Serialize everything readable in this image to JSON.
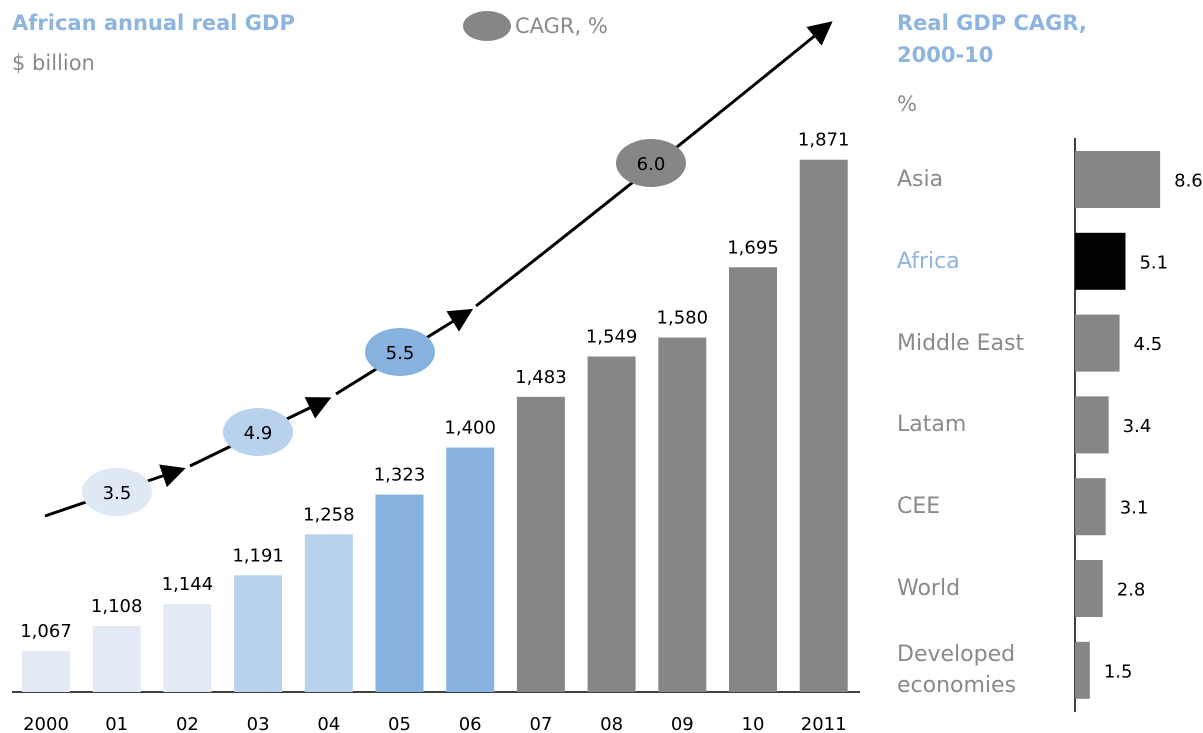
{
  "chart_data": [
    {
      "type": "bar",
      "title": "African annual real GDP",
      "subtitle": "$ billion",
      "categories": [
        "2000",
        "01",
        "02",
        "03",
        "04",
        "05",
        "06",
        "07",
        "08",
        "09",
        "10",
        "2011"
      ],
      "values": [
        1067,
        1108,
        1144,
        1191,
        1258,
        1323,
        1400,
        1483,
        1549,
        1580,
        1695,
        1871
      ],
      "value_labels": [
        "1,067",
        "1,108",
        "1,144",
        "1,191",
        "1,258",
        "1,323",
        "1,400",
        "1,483",
        "1,549",
        "1,580",
        "1,695",
        "1,871"
      ],
      "colors": [
        "#e3eaf6",
        "#e3eaf6",
        "#e3eaf6",
        "#b8d1ec",
        "#b8d1ec",
        "#87b2df",
        "#87b2df",
        "#868688",
        "#868688",
        "#868688",
        "#868688",
        "#868688"
      ],
      "ylim": [
        1000,
        1900
      ],
      "cagr": {
        "name": "CAGR, %",
        "color": "#868688",
        "values": [
          3.5,
          4.9,
          5.5,
          6.0
        ],
        "value_labels": [
          "3.5",
          "4.9",
          "5.5",
          "6.0"
        ],
        "colors": [
          "#dfe8f5",
          "#b8d1ec",
          "#87b2df",
          "#868688"
        ]
      }
    },
    {
      "type": "hbar",
      "title": "Real GDP CAGR, 2000-10",
      "subtitle": "%",
      "categories": [
        "Asia",
        "Africa",
        "Middle East",
        "Latam",
        "CEE",
        "World",
        "Developed economies"
      ],
      "values": [
        8.6,
        5.1,
        4.5,
        3.4,
        3.1,
        2.8,
        1.5
      ],
      "colors": [
        "#868688",
        "#000000",
        "#868688",
        "#868688",
        "#868688",
        "#868688",
        "#868688"
      ],
      "label_colors": [
        "#8a8a8a",
        "#8eb4e0",
        "#8a8a8a",
        "#8a8a8a",
        "#8a8a8a",
        "#8a8a8a",
        "#8a8a8a"
      ],
      "xlim": [
        0,
        10
      ]
    }
  ]
}
